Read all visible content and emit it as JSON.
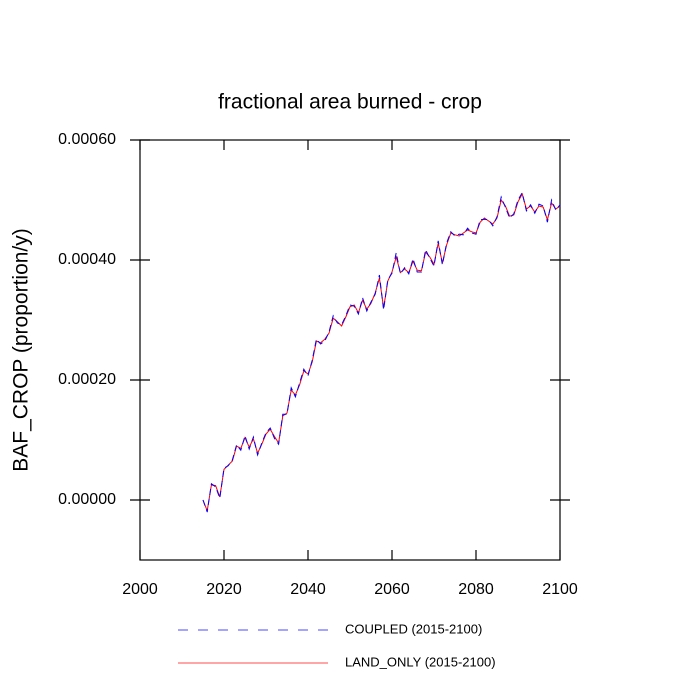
{
  "chart_data": {
    "type": "line",
    "title": "fractional area burned - crop",
    "y_label": "BAF_CROP  (proportion/y)",
    "x": [
      2015,
      2016,
      2017,
      2018,
      2019,
      2020,
      2021,
      2022,
      2023,
      2024,
      2025,
      2026,
      2027,
      2028,
      2029,
      2030,
      2031,
      2032,
      2033,
      2034,
      2035,
      2036,
      2037,
      2038,
      2039,
      2040,
      2041,
      2042,
      2043,
      2044,
      2045,
      2046,
      2047,
      2048,
      2049,
      2050,
      2051,
      2052,
      2053,
      2054,
      2055,
      2056,
      2057,
      2058,
      2059,
      2060,
      2061,
      2062,
      2063,
      2064,
      2065,
      2066,
      2067,
      2068,
      2069,
      2070,
      2071,
      2072,
      2073,
      2074,
      2075,
      2076,
      2077,
      2078,
      2079,
      2080,
      2081,
      2082,
      2083,
      2084,
      2085,
      2086,
      2087,
      2088,
      2089,
      2090,
      2091,
      2092,
      2093,
      2094,
      2095,
      2096,
      2097,
      2098,
      2099,
      2100
    ],
    "series": [
      {
        "name": "COUPLED (2015-2100)",
        "color": "#0000ff",
        "dash": true,
        "values": [
          0,
          -2e-05,
          2.7e-05,
          2.2e-05,
          3e-06,
          5.3e-05,
          5.7e-05,
          6.7e-05,
          9.2e-05,
          8.3e-05,
          0.000107,
          8.5e-05,
          0.000105,
          7.5e-05,
          9.5e-05,
          0.000112,
          0.00012,
          0.000103,
          9.3e-05,
          0.000143,
          0.000143,
          0.000187,
          0.000172,
          0.000195,
          0.000218,
          0.000207,
          0.000233,
          0.000268,
          0.00026,
          0.000265,
          0.00028,
          0.000307,
          0.000295,
          0.000292,
          0.000307,
          0.000325,
          0.000323,
          0.00031,
          0.000337,
          0.000315,
          0.00033,
          0.000343,
          0.000375,
          0.000317,
          0.000367,
          0.000378,
          0.000412,
          0.000377,
          0.000387,
          0.000377,
          0.000402,
          0.00038,
          0.00038,
          0.000417,
          0.000403,
          0.00039,
          0.000432,
          0.000392,
          0.000428,
          0.000447,
          0.00044,
          0.000443,
          0.000442,
          0.000453,
          0.000445,
          0.000443,
          0.000467,
          0.000468,
          0.000467,
          0.000457,
          0.000472,
          0.000505,
          0.000488,
          0.00047,
          0.000477,
          0.0005,
          0.000512,
          0.000482,
          0.000492,
          0.000478,
          0.000493,
          0.00049,
          0.000463,
          0.0005,
          0.000483,
          0.000492
        ]
      },
      {
        "name": "LAND_ONLY (2015-2100)",
        "color": "#ff0000",
        "dash": false,
        "values": [
          0,
          -1.8e-05,
          2.5e-05,
          2.4e-05,
          5e-06,
          5.1e-05,
          5.8e-05,
          6.5e-05,
          9e-05,
          8.6e-05,
          0.000104,
          8.8e-05,
          0.000102,
          7.8e-05,
          9.3e-05,
          0.00011,
          0.000118,
          0.000106,
          9.5e-05,
          0.00014,
          0.000145,
          0.000183,
          0.000175,
          0.000192,
          0.000215,
          0.00021,
          0.00023,
          0.000265,
          0.000262,
          0.000268,
          0.000278,
          0.000303,
          0.000297,
          0.00029,
          0.000305,
          0.000322,
          0.000325,
          0.000312,
          0.000333,
          0.000318,
          0.000328,
          0.000345,
          0.00037,
          0.00032,
          0.000365,
          0.00038,
          0.000405,
          0.000379,
          0.000385,
          0.000379,
          0.000398,
          0.000383,
          0.000382,
          0.000413,
          0.000405,
          0.000393,
          0.000428,
          0.000395,
          0.000425,
          0.000445,
          0.000442,
          0.00044,
          0.000445,
          0.00045,
          0.000447,
          0.000445,
          0.000463,
          0.00047,
          0.000465,
          0.00046,
          0.00047,
          0.0005,
          0.00049,
          0.000473,
          0.000475,
          0.000497,
          0.00051,
          0.000485,
          0.00049,
          0.00048,
          0.00049,
          0.000488,
          0.000467,
          0.000495,
          0.000485,
          0.00049
        ]
      }
    ],
    "xlim": [
      2000,
      2100
    ],
    "xticks": [
      2000,
      2020,
      2040,
      2060,
      2080,
      2100
    ],
    "ylim": [
      -0.0001,
      0.0006
    ],
    "yticks": [
      {
        "value": 0,
        "label": "0.00000"
      },
      {
        "value": 0.0002,
        "label": "0.00020"
      },
      {
        "value": 0.0004,
        "label": "0.00040"
      },
      {
        "value": 0.0006,
        "label": "0.00060"
      }
    ]
  }
}
